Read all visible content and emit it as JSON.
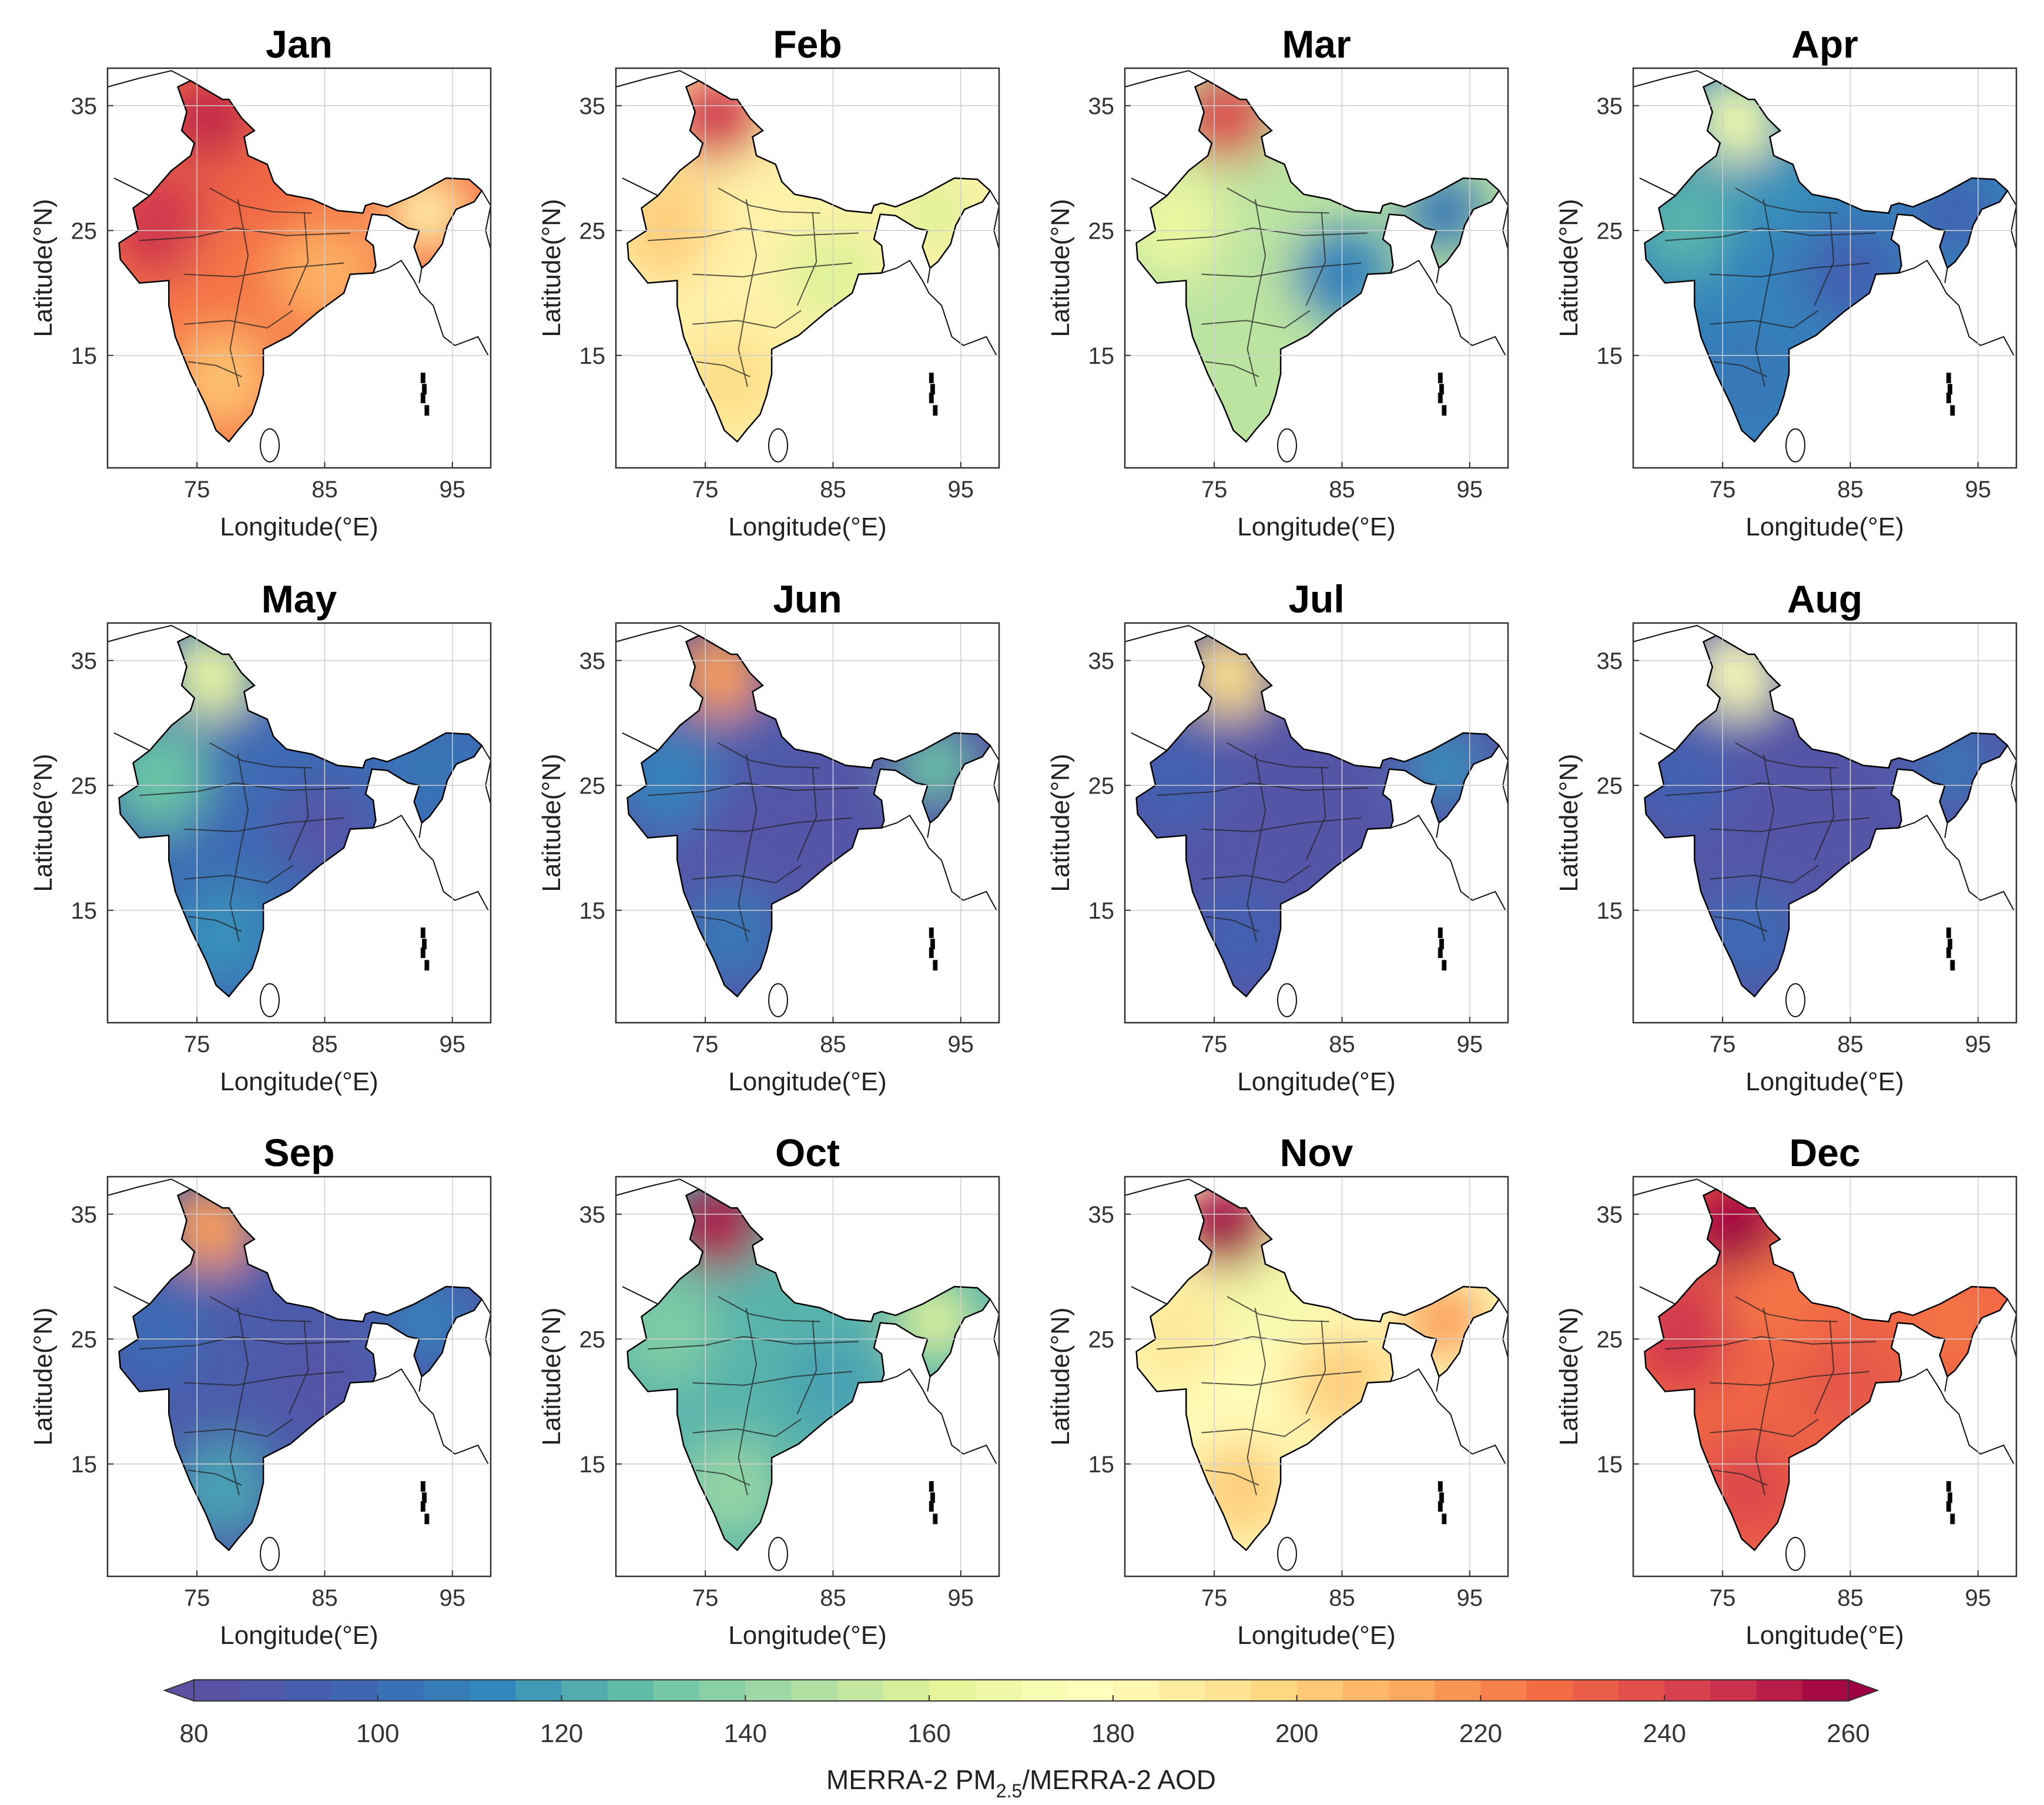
{
  "chart_data": {
    "type": "heatmap",
    "panels": [
      {
        "title": "Jan",
        "regions": {
          "north": 230,
          "northwest": 245,
          "central": 225,
          "east": 210,
          "south": 205,
          "northeast": 185,
          "himalaya": 250
        }
      },
      {
        "title": "Feb",
        "regions": {
          "north": 185,
          "northwest": 200,
          "central": 185,
          "east": 160,
          "south": 195,
          "northeast": 160,
          "himalaya": 245
        }
      },
      {
        "title": "Mar",
        "regions": {
          "north": 150,
          "northwest": 165,
          "central": 150,
          "east": 110,
          "south": 150,
          "northeast": 105,
          "himalaya": 240
        }
      },
      {
        "title": "Apr",
        "regions": {
          "north": 115,
          "northwest": 125,
          "central": 110,
          "east": 95,
          "south": 105,
          "northeast": 95,
          "himalaya": 170
        }
      },
      {
        "title": "May",
        "regions": {
          "north": 100,
          "northwest": 130,
          "central": 100,
          "east": 85,
          "south": 115,
          "northeast": 105,
          "himalaya": 165
        }
      },
      {
        "title": "Jun",
        "regions": {
          "north": 90,
          "northwest": 110,
          "central": 85,
          "east": 85,
          "south": 105,
          "northeast": 130,
          "himalaya": 215
        }
      },
      {
        "title": "Jul",
        "regions": {
          "north": 85,
          "northwest": 95,
          "central": 85,
          "east": 85,
          "south": 95,
          "northeast": 115,
          "himalaya": 195
        }
      },
      {
        "title": "Aug",
        "regions": {
          "north": 85,
          "northwest": 95,
          "central": 85,
          "east": 85,
          "south": 100,
          "northeast": 105,
          "himalaya": 175
        }
      },
      {
        "title": "Sep",
        "regions": {
          "north": 90,
          "northwest": 100,
          "central": 90,
          "east": 85,
          "south": 120,
          "northeast": 110,
          "himalaya": 215
        }
      },
      {
        "title": "Oct",
        "regions": {
          "north": 125,
          "northwest": 135,
          "central": 125,
          "east": 120,
          "south": 140,
          "northeast": 160,
          "himalaya": 255
        }
      },
      {
        "title": "Nov",
        "regions": {
          "north": 170,
          "northwest": 190,
          "central": 180,
          "east": 200,
          "south": 200,
          "northeast": 215,
          "himalaya": 260
        }
      },
      {
        "title": "Dec",
        "regions": {
          "north": 225,
          "northwest": 245,
          "central": 230,
          "east": 235,
          "south": 240,
          "northeast": 225,
          "himalaya": 260
        }
      }
    ],
    "xlabel": "Longitude(°E)",
    "ylabel": "Latitude(°N)",
    "xticks": [
      75,
      85,
      95
    ],
    "yticks": [
      15,
      25,
      35
    ],
    "xlim": [
      68,
      98
    ],
    "ylim": [
      6,
      38
    ],
    "grid": true,
    "colorbar": {
      "ticks": [
        80,
        100,
        120,
        140,
        160,
        180,
        200,
        220,
        240,
        260
      ],
      "range": [
        80,
        260
      ],
      "label": "MERRA-2 PM",
      "label_sub": "2.5",
      "label_suffix": "/MERRA-2 AOD",
      "extend": "both",
      "colormap": "Spectral (reversed)",
      "colors": [
        "#5e4fa2",
        "#3f63b1",
        "#3288bd",
        "#66c2a5",
        "#abdda4",
        "#e6f598",
        "#ffffbf",
        "#fee08b",
        "#fdae61",
        "#f46d43",
        "#d53e4f",
        "#9e0142"
      ]
    }
  }
}
